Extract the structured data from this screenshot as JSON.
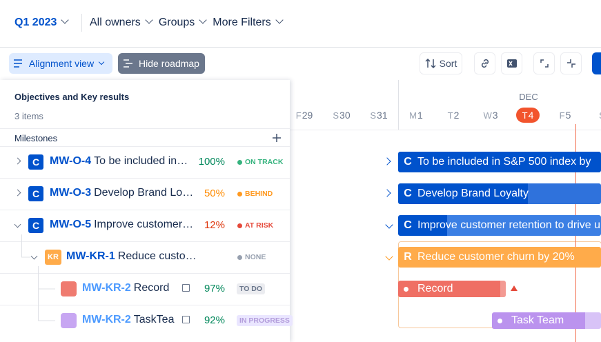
{
  "toolbar": {
    "period": "Q1 2023",
    "filters": [
      "All owners",
      "Groups",
      "More Filters"
    ]
  },
  "actions": {
    "alignment_view": "Alignment view",
    "hide_roadmap": "Hide roadmap",
    "sort": "Sort"
  },
  "panel": {
    "title": "Objectives and Key results",
    "count": "3 items",
    "milestones": "Milestones"
  },
  "timeline": {
    "month": "DEC",
    "days": [
      {
        "wd": "F",
        "d": "29"
      },
      {
        "wd": "S",
        "d": "30"
      },
      {
        "wd": "S",
        "d": "31"
      },
      {
        "wd": "M",
        "d": "1"
      },
      {
        "wd": "T",
        "d": "2"
      },
      {
        "wd": "W",
        "d": "3"
      },
      {
        "wd": "T",
        "d": "4"
      },
      {
        "wd": "F",
        "d": "5"
      },
      {
        "wd": "S",
        "d": ""
      }
    ]
  },
  "rows": [
    {
      "badge": "C",
      "key": "MW-O-4",
      "title": "To be included in…",
      "progress": "100%",
      "status": "ON TRACK"
    },
    {
      "badge": "C",
      "key": "MW-O-3",
      "title": "Develop Brand Lo…",
      "progress": "50%",
      "status": "BEHIND"
    },
    {
      "badge": "C",
      "key": "MW-O-5",
      "title": "Improve customer…",
      "progress": "12%",
      "status": "AT RISK"
    },
    {
      "badge": "KR",
      "key": "MW-KR-1",
      "title": "Reduce custo…",
      "progress": "",
      "status": "NONE"
    },
    {
      "key": "MW-KR-2",
      "title": "Record",
      "progress": "97%",
      "status": "TO DO"
    },
    {
      "key": "MW-KR-2",
      "title": "TaskTea",
      "progress": "92%",
      "status": "IN PROGRESS"
    }
  ],
  "bars": [
    {
      "badge": "C",
      "label": "To be included in S&P 500 index by"
    },
    {
      "badge": "C",
      "label": "Develop Brand Loyalty"
    },
    {
      "badge": "C",
      "label": "Improve customer retention to drive u"
    },
    {
      "badge": "R",
      "label": "Reduce customer churn by 20%"
    },
    {
      "label": "Record"
    },
    {
      "label": "Task Team"
    }
  ]
}
